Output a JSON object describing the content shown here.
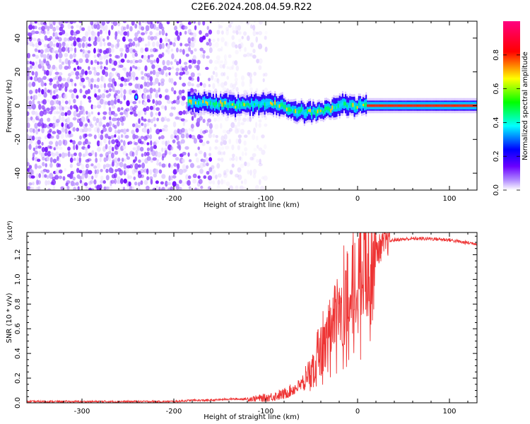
{
  "title": "C2E6.2024.208.04.59.R22",
  "chart_data": [
    {
      "type": "heatmap",
      "xlabel": "Height of straight line (km)",
      "ylabel": "Frequency (Hz)",
      "xlim": [
        -360,
        130
      ],
      "ylim": [
        -50,
        50
      ],
      "xticks": [
        -300,
        -200,
        -100,
        0,
        100
      ],
      "xtick_labels": [
        "-300",
        "-200",
        "-100",
        "0",
        "100"
      ],
      "yticks": [
        -40,
        -20,
        0,
        20,
        40
      ],
      "ytick_labels": [
        "-40",
        "-20",
        "0",
        "20",
        "40"
      ],
      "colorbar": {
        "label": "Normalized spectral amplitude",
        "range": [
          0,
          1
        ],
        "ticks": [
          0.0,
          0.2,
          0.4,
          0.6,
          0.8
        ],
        "tick_labels": [
          "0.0",
          "0.2",
          "0.4",
          "0.6",
          "0.8"
        ],
        "colormap": [
          "#ffffff",
          "#6a00ff",
          "#0000ff",
          "#00ffff",
          "#00ff00",
          "#ffff00",
          "#ff0000",
          "#ff0080"
        ]
      },
      "ridge": {
        "x": [
          -185,
          -170,
          -150,
          -130,
          -110,
          -90,
          -70,
          -50,
          -30,
          -20,
          -10,
          0,
          20,
          60,
          100,
          130
        ],
        "frequency": [
          2,
          2,
          1,
          0,
          1,
          1,
          -3,
          -4,
          -2,
          1,
          0,
          0,
          0,
          0,
          0,
          0
        ]
      },
      "noise_region": {
        "x_from": -360,
        "x_to": -110
      },
      "grid": false
    },
    {
      "type": "line",
      "xlabel": "Height of straight line (km)",
      "ylabel": "SNR (10 * v/v)",
      "exponent_label": "(x10⁴)",
      "xlim": [
        -360,
        130
      ],
      "ylim": [
        0,
        1.38
      ],
      "xticks": [
        -300,
        -200,
        -100,
        0,
        100
      ],
      "xtick_labels": [
        "-300",
        "-200",
        "-100",
        "0",
        "100"
      ],
      "yticks": [
        0.0,
        0.2,
        0.4,
        0.6,
        0.8,
        1.0,
        1.2
      ],
      "ytick_labels": [
        "0.0",
        "0.2",
        "0.4",
        "0.6",
        "0.8",
        "1.0",
        "1.2"
      ],
      "color": "#ee3333",
      "series": [
        {
          "x": [
            -360,
            -300,
            -250,
            -200,
            -180,
            -160,
            -140,
            -120,
            -100,
            -80,
            -60,
            -50,
            -40,
            -30,
            -20,
            -10,
            0,
            10,
            20,
            30,
            40,
            60,
            80,
            100,
            115,
            130
          ],
          "values": [
            0.01,
            0.01,
            0.01,
            0.01,
            0.02,
            0.02,
            0.03,
            0.03,
            0.04,
            0.07,
            0.15,
            0.25,
            0.4,
            0.6,
            0.75,
            0.85,
            0.95,
            1.1,
            1.22,
            1.3,
            1.32,
            1.33,
            1.33,
            1.32,
            1.3,
            1.29
          ]
        }
      ],
      "grid": false
    }
  ]
}
